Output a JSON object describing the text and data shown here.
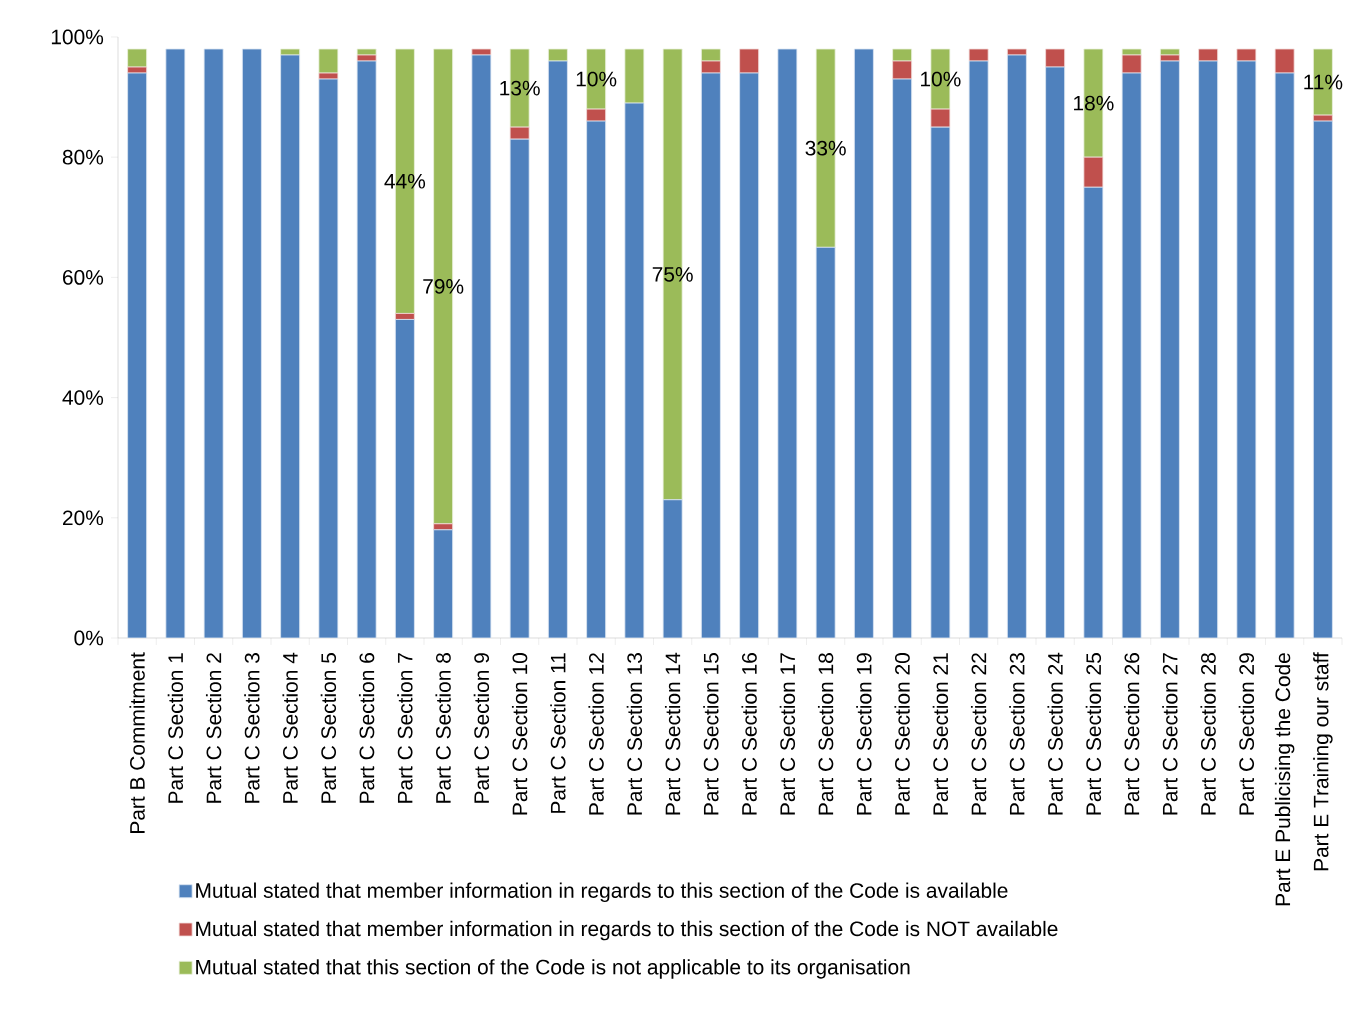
{
  "chart_data": {
    "type": "bar",
    "stacked": true,
    "categories": [
      "Part B Commitment",
      "Part C Section 1",
      "Part C Section 2",
      "Part C Section 3",
      "Part C Section 4",
      "Part C Section 5",
      "Part C Section 6",
      "Part C Section 7",
      "Part C Section 8",
      "Part C Section 9",
      "Part C Section 10",
      "Part C Section 11",
      "Part C Section 12",
      "Part C Section 13",
      "Part C Section 14",
      "Part C Section 15",
      "Part C Section 16",
      "Part C Section 17",
      "Part C Section 18",
      "Part C Section 19",
      "Part C Section 20",
      "Part C Section 21",
      "Part C Section 22",
      "Part C Section 23",
      "Part C Section 24",
      "Part C Section 25",
      "Part C Section 26",
      "Part C Section 27",
      "Part C Section 28",
      "Part C Section 29",
      "Part E Publicising the Code",
      "Part E Training our staff"
    ],
    "series": [
      {
        "name": "Mutual stated that member information in regards to this section of the Code is available",
        "color": "#4f81bd",
        "values": [
          94,
          98,
          98,
          98,
          97,
          93,
          96,
          53,
          18,
          97,
          83,
          96,
          86,
          89,
          23,
          94,
          94,
          98,
          65,
          98,
          93,
          85,
          96,
          97,
          95,
          75,
          94,
          96,
          96,
          96,
          94,
          86
        ]
      },
      {
        "name": "Mutual stated that member information in regards to this section of the Code is NOT available",
        "color": "#c0504d",
        "values": [
          1,
          0,
          0,
          0,
          0,
          1,
          1,
          1,
          1,
          1,
          2,
          0,
          2,
          0,
          0,
          2,
          4,
          0,
          0,
          0,
          3,
          3,
          2,
          1,
          3,
          5,
          3,
          1,
          2,
          2,
          4,
          1
        ]
      },
      {
        "name": "Mutual stated that this section of the Code is not applicable to its organisation",
        "color": "#9bbb59",
        "values": [
          3,
          0,
          0,
          0,
          1,
          4,
          1,
          44,
          79,
          0,
          13,
          2,
          10,
          9,
          75,
          2,
          0,
          0,
          33,
          0,
          2,
          10,
          0,
          0,
          0,
          18,
          1,
          1,
          0,
          0,
          0,
          11
        ],
        "value_labels": [
          null,
          null,
          null,
          null,
          null,
          null,
          null,
          "44%",
          "79%",
          null,
          "13%",
          null,
          "10%",
          null,
          "75%",
          null,
          null,
          null,
          "33%",
          null,
          null,
          "10%",
          null,
          null,
          null,
          "18%",
          null,
          null,
          null,
          null,
          null,
          "11%"
        ]
      }
    ],
    "ylim": [
      0,
      100
    ],
    "yticks": [
      {
        "value": 0,
        "label": "0%"
      },
      {
        "value": 20,
        "label": "20%"
      },
      {
        "value": 40,
        "label": "40%"
      },
      {
        "value": 60,
        "label": "60%"
      },
      {
        "value": 80,
        "label": "80%"
      },
      {
        "value": 100,
        "label": "100%"
      }
    ],
    "grid": false,
    "legend": "bottom"
  }
}
